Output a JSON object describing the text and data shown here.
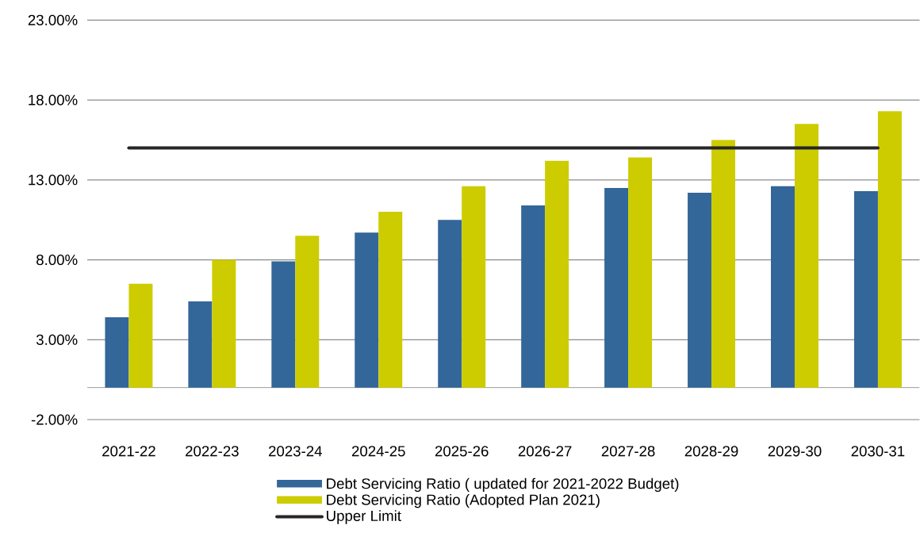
{
  "chart_data": {
    "type": "bar",
    "categories": [
      "2021-22",
      "2022-23",
      "2023-24",
      "2024-25",
      "2025-26",
      "2026-27",
      "2027-28",
      "2028-29",
      "2029-30",
      "2030-31"
    ],
    "series": [
      {
        "name": "Debt Servicing Ratio ( updated for 2021-2022 Budget)",
        "color": "#336699",
        "values": [
          4.4,
          5.4,
          7.9,
          9.7,
          10.5,
          11.4,
          12.5,
          12.2,
          12.6,
          12.3
        ]
      },
      {
        "name": "Debt Servicing Ratio (Adopted Plan 2021)",
        "color": "#cccc00",
        "values": [
          6.5,
          8.0,
          9.5,
          11.0,
          12.6,
          14.2,
          14.4,
          15.5,
          16.5,
          17.3
        ]
      },
      {
        "name": "Upper Limit",
        "type": "line",
        "color": "#262626",
        "values": [
          15,
          15,
          15,
          15,
          15,
          15,
          15,
          15,
          15,
          15
        ]
      }
    ],
    "ylim": [
      -2,
      23
    ],
    "yticks": [
      {
        "value": -2,
        "label": "-2.00%"
      },
      {
        "value": 3,
        "label": "3.00%"
      },
      {
        "value": 8,
        "label": "8.00%"
      },
      {
        "value": 13,
        "label": "13.00%"
      },
      {
        "value": 18,
        "label": "18.00%"
      },
      {
        "value": 23,
        "label": "23.00%"
      }
    ],
    "grid": "y",
    "legend": "bottom"
  }
}
